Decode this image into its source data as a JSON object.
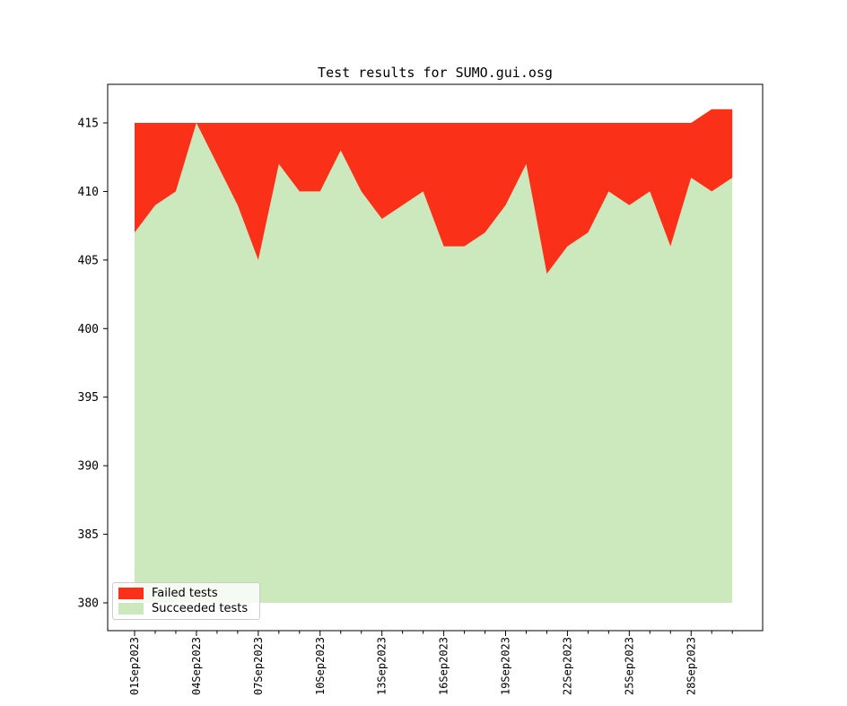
{
  "chart_data": {
    "type": "area",
    "stacked": true,
    "title": "Test results for SUMO.gui.osg",
    "x": [
      "01Sep2023",
      "02Sep2023",
      "03Sep2023",
      "04Sep2023",
      "05Sep2023",
      "06Sep2023",
      "07Sep2023",
      "08Sep2023",
      "09Sep2023",
      "10Sep2023",
      "11Sep2023",
      "12Sep2023",
      "13Sep2023",
      "14Sep2023",
      "15Sep2023",
      "16Sep2023",
      "17Sep2023",
      "18Sep2023",
      "19Sep2023",
      "20Sep2023",
      "21Sep2023",
      "22Sep2023",
      "23Sep2023",
      "24Sep2023",
      "25Sep2023",
      "26Sep2023",
      "27Sep2023",
      "28Sep2023",
      "29Sep2023",
      "30Sep2023"
    ],
    "series": [
      {
        "name": "Failed tests",
        "color": "#fa3118",
        "values": [
          8,
          6,
          5,
          0,
          3,
          6,
          10,
          3,
          5,
          5,
          2,
          5,
          7,
          6,
          5,
          9,
          9,
          8,
          6,
          3,
          11,
          9,
          8,
          5,
          6,
          5,
          9,
          4,
          6,
          5
        ]
      },
      {
        "name": "Succeeded tests",
        "color": "#cce9bd",
        "values": [
          407,
          409,
          410,
          415,
          412,
          409,
          405,
          412,
          410,
          410,
          413,
          410,
          408,
          409,
          410,
          406,
          406,
          407,
          409,
          412,
          404,
          406,
          407,
          410,
          409,
          410,
          406,
          411,
          410,
          411
        ]
      }
    ],
    "totals": [
      415,
      415,
      415,
      415,
      415,
      415,
      415,
      415,
      415,
      415,
      415,
      415,
      415,
      415,
      415,
      415,
      415,
      415,
      415,
      415,
      415,
      415,
      415,
      415,
      415,
      415,
      415,
      415,
      416,
      416
    ],
    "baseline": 380,
    "ylim": [
      378.2,
      417.8
    ],
    "yticks": [
      415,
      410,
      405,
      400,
      395,
      390,
      385,
      380
    ],
    "xticks_major_labels": [
      "01Sep2023",
      "04Sep2023",
      "07Sep2023",
      "10Sep2023",
      "13Sep2023",
      "16Sep2023",
      "19Sep2023",
      "22Sep2023",
      "25Sep2023",
      "28Sep2023"
    ],
    "xtick_major_interval_days": 3,
    "xtick_minor_interval_days": 1,
    "grid": false,
    "legend_position": "lower left",
    "axes_color": "#000000",
    "background_color": "#ffffff"
  }
}
